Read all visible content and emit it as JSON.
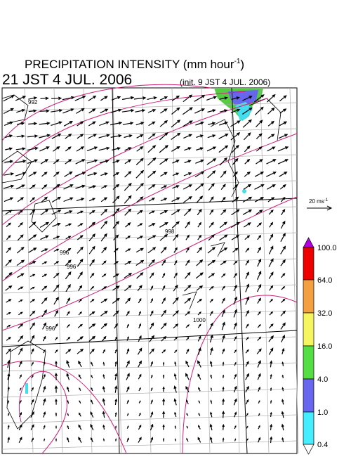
{
  "header": {
    "title": "PRECIPITATION INTENSITY (mm hour",
    "title_sup": "-1",
    "title_end": ")",
    "valid_time": "21 JST 4 JUL. 2006",
    "init_time": "(init. 9 JST 4 JUL. 2006)"
  },
  "vector_legend": {
    "label": "20 ms",
    "label_sup": "-1"
  },
  "colorbar": {
    "labels": [
      "100.0",
      "64.0",
      "32.0",
      "16.0",
      "4.0",
      "1.0",
      "0.4"
    ]
  },
  "isobar_labels": [
    "992",
    "996",
    "996",
    "998",
    "996",
    "1000"
  ]
}
